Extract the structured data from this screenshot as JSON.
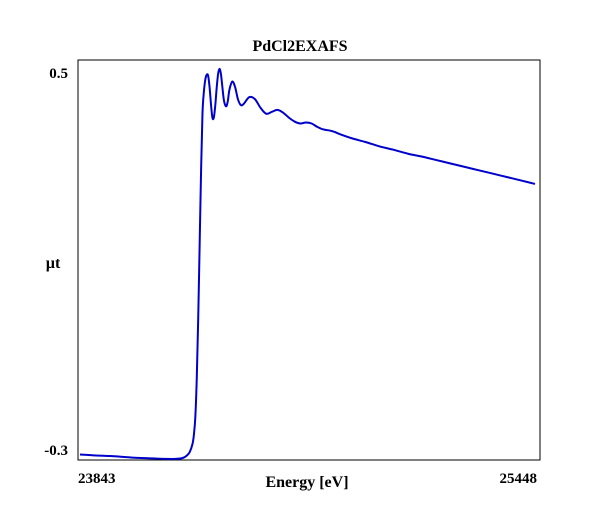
{
  "chart_data": {
    "type": "line",
    "title": "PdCl2EXAFS",
    "xlabel": "Energy [eV]",
    "ylabel": "µt",
    "xlim": [
      23843,
      25448
    ],
    "ylim": [
      -0.3,
      0.5
    ],
    "x_ticks": [
      "23843",
      "25448"
    ],
    "y_ticks": [
      "0.5",
      "-0.3"
    ],
    "grid": false,
    "line_color": "#0000cc",
    "series": [
      {
        "x": [
          23843,
          23900,
          23950,
          24000,
          24050,
          24100,
          24150,
          24180,
          24200,
          24210,
          24220,
          24230,
          24240,
          24245,
          24250,
          24255,
          24260,
          24265,
          24270,
          24275,
          24280,
          24285,
          24290,
          24295,
          24300,
          24305,
          24310,
          24315,
          24320,
          24325,
          24330,
          24335,
          24340,
          24345,
          24350,
          24355,
          24360,
          24365,
          24370,
          24380,
          24390,
          24400,
          24410,
          24420,
          24440,
          24460,
          24480,
          24500,
          24520,
          24540,
          24560,
          24580,
          24600,
          24620,
          24640,
          24660,
          24680,
          24700,
          24720,
          24740,
          24760,
          24800,
          24850,
          24900,
          24950,
          25000,
          25050,
          25100,
          25150,
          25200,
          25250,
          25300,
          25350,
          25400,
          25448
        ],
        "y": [
          -0.299,
          -0.301,
          -0.302,
          -0.304,
          -0.306,
          -0.307,
          -0.308,
          -0.308,
          -0.307,
          -0.305,
          -0.301,
          -0.294,
          -0.277,
          -0.257,
          -0.22,
          -0.14,
          -0.02,
          0.13,
          0.28,
          0.4,
          0.445,
          0.47,
          0.48,
          0.478,
          0.455,
          0.42,
          0.392,
          0.392,
          0.416,
          0.452,
          0.481,
          0.492,
          0.482,
          0.456,
          0.43,
          0.418,
          0.416,
          0.428,
          0.449,
          0.466,
          0.455,
          0.43,
          0.418,
          0.42,
          0.434,
          0.43,
          0.412,
          0.4,
          0.404,
          0.408,
          0.402,
          0.392,
          0.384,
          0.38,
          0.382,
          0.38,
          0.373,
          0.368,
          0.366,
          0.363,
          0.358,
          0.35,
          0.342,
          0.333,
          0.326,
          0.318,
          0.312,
          0.305,
          0.298,
          0.291,
          0.284,
          0.277,
          0.27,
          0.263,
          0.256
        ]
      }
    ]
  }
}
